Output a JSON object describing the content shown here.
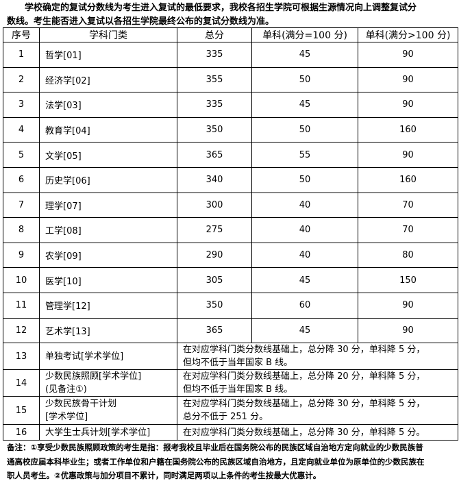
{
  "intro": {
    "line1": "学校确定的复试分数线为考生进入复试的最低要求，我校各招生学院可根据生源情况向上调整复试分",
    "line2": "数线。考生能否进入复试以各招生学院最终公布的复试分数线为准。"
  },
  "table": {
    "headers": [
      "序号",
      "学科门类",
      "总分",
      "单科(满分=100 分)",
      "单科(满分>100 分)"
    ],
    "rows": [
      {
        "no": "1",
        "subject": "哲学[01]",
        "total": "335",
        "s100": "45",
        "s100p": "90"
      },
      {
        "no": "2",
        "subject": "经济学[02]",
        "total": "355",
        "s100": "50",
        "s100p": "90"
      },
      {
        "no": "3",
        "subject": "法学[03]",
        "total": "335",
        "s100": "45",
        "s100p": "90"
      },
      {
        "no": "4",
        "subject": "教育学[04]",
        "total": "350",
        "s100": "50",
        "s100p": "160"
      },
      {
        "no": "5",
        "subject": "文学[05]",
        "total": "365",
        "s100": "55",
        "s100p": "90"
      },
      {
        "no": "6",
        "subject": "历史学[06]",
        "total": "340",
        "s100": "50",
        "s100p": "160"
      },
      {
        "no": "7",
        "subject": "理学[07]",
        "total": "300",
        "s100": "40",
        "s100p": "70"
      },
      {
        "no": "8",
        "subject": "工学[08]",
        "total": "275",
        "s100": "40",
        "s100p": "70"
      },
      {
        "no": "9",
        "subject": "农学[09]",
        "total": "290",
        "s100": "40",
        "s100p": "80"
      },
      {
        "no": "10",
        "subject": "医学[10]",
        "total": "305",
        "s100": "45",
        "s100p": "150"
      },
      {
        "no": "11",
        "subject": "管理学[12]",
        "total": "350",
        "s100": "60",
        "s100p": "90"
      },
      {
        "no": "12",
        "subject": "艺术学[13]",
        "total": "365",
        "s100": "45",
        "s100p": "90"
      }
    ],
    "special": [
      {
        "no": "13",
        "subject1": "单独考试[学术学位]",
        "subject2": "",
        "rule1": "在对应学科门类分数线基础上，总分降 30 分，单科降 5 分，",
        "rule2": "但均不低于当年国家 B 线。"
      },
      {
        "no": "14",
        "subject1": "少数民族照顾[学术学位]",
        "subject2": "(见备注①)",
        "rule1": "在对应学科门类分数线基础上，总分降 20 分，单科降 5 分，",
        "rule2": "但均不低于当年国家 B 线。"
      },
      {
        "no": "15",
        "subject1": "少数民族骨干计划",
        "subject2": "[学术学位]",
        "rule1": "在对应学科门类分数线基础上，总分降 30 分，单科降 5 分，",
        "rule2": "总分不低于 251 分。"
      },
      {
        "no": "16",
        "subject1": "大学生士兵计划[学术学位]",
        "subject2": "",
        "rule1": "在对应学科门类分数线基础上，总分降 30 分，单科降 5 分。",
        "rule2": ""
      }
    ]
  },
  "notes": {
    "line1": "备注：①享受少数民族照顾政策的考生是指：报考我校且毕业后在国务院公布的民族区域自治地方定向就业的少数民族普",
    "line2": "通高校应届本科毕业生；或者工作单位和户籍在国务院公布的民族区域自治地方，且定向就业单位为原单位的少数民族在",
    "line3": "职人员考生。②优惠政策与加分项目不累计，同时满足两项以上条件的考生按最大优惠计。"
  }
}
